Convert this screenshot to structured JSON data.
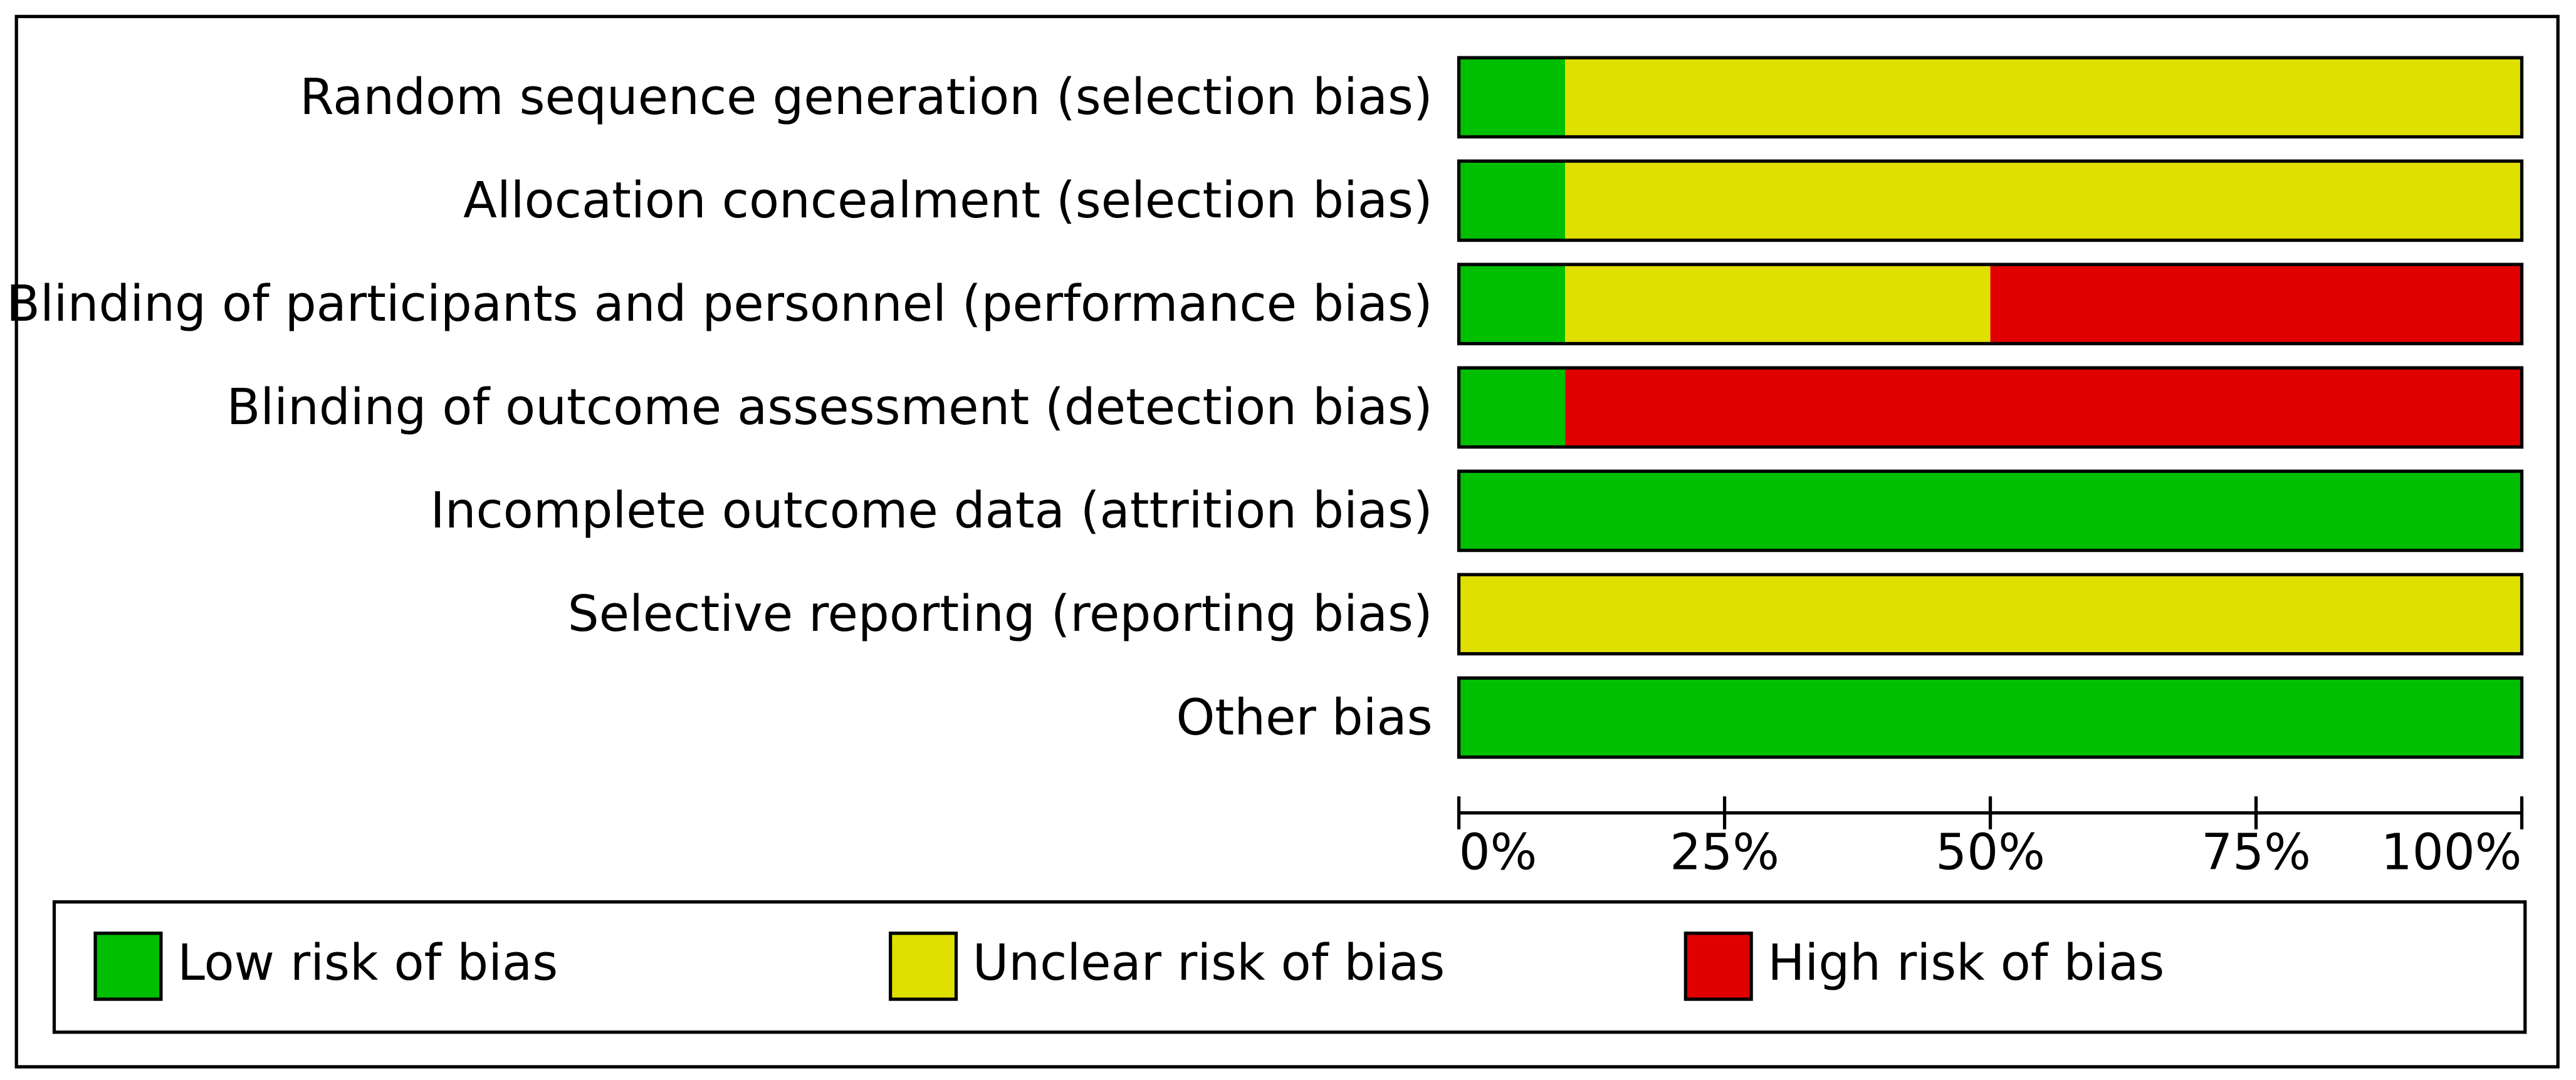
{
  "chart_data": {
    "type": "stacked-bar-horizontal",
    "categories": [
      "Random sequence generation (selection bias)",
      "Allocation concealment (selection bias)",
      "Blinding of participants and personnel (performance bias)",
      "Blinding of outcome assessment (detection bias)",
      "Incomplete outcome data (attrition bias)",
      "Selective reporting (reporting bias)",
      "Other bias"
    ],
    "series": [
      {
        "name": "Low risk of bias",
        "color": "#00bf00",
        "values": [
          10,
          10,
          10,
          10,
          100,
          0,
          100
        ]
      },
      {
        "name": "Unclear risk of bias",
        "color": "#e0e000",
        "values": [
          90,
          90,
          40,
          0,
          0,
          100,
          0
        ]
      },
      {
        "name": "High risk of bias",
        "color": "#e00000",
        "values": [
          0,
          0,
          50,
          90,
          0,
          0,
          0
        ]
      }
    ],
    "xlim": [
      0,
      100
    ],
    "xticks": [
      {
        "value": 0,
        "label": "0%"
      },
      {
        "value": 25,
        "label": "25%"
      },
      {
        "value": 50,
        "label": "50%"
      },
      {
        "value": 75,
        "label": "75%"
      },
      {
        "value": 100,
        "label": "100%"
      }
    ]
  }
}
